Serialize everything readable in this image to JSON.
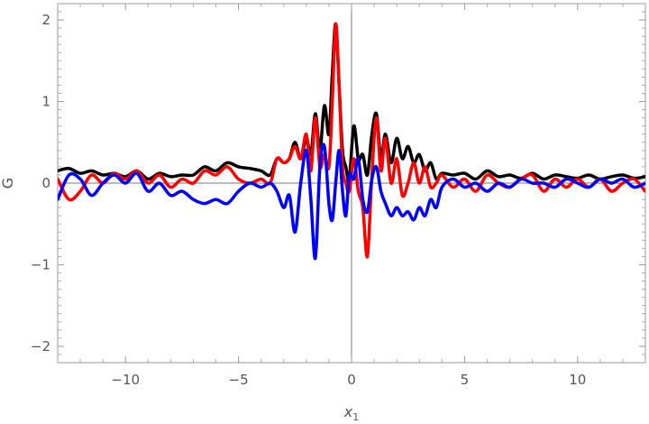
{
  "chart_data": {
    "type": "line",
    "title": "",
    "xlabel": "x",
    "xlabel_subscript": "1",
    "ylabel": "G",
    "xlim": [
      -13,
      13
    ],
    "ylim": [
      -2.2,
      2.2
    ],
    "x_ticks": [
      -10,
      -5,
      0,
      5,
      10
    ],
    "x_tick_labels": [
      "−10",
      "−5",
      "0",
      "5",
      "10"
    ],
    "y_ticks": [
      -2,
      -1,
      0,
      1,
      2
    ],
    "y_tick_labels": [
      "−2",
      "−1",
      "0",
      "1",
      "2"
    ],
    "grid": false,
    "legend": "none",
    "series": [
      {
        "color": "#000000",
        "x": [
          -13,
          -12.5,
          -12,
          -11.5,
          -11,
          -10.5,
          -10,
          -9.5,
          -9,
          -8.5,
          -8,
          -7.5,
          -7,
          -6.5,
          -6,
          -5.5,
          -5,
          -4.5,
          -4,
          -3.6,
          -3.3,
          -3,
          -2.75,
          -2.5,
          -2.25,
          -2.0,
          -1.8,
          -1.6,
          -1.4,
          -1.2,
          -1.0,
          -0.85,
          -0.7,
          -0.55,
          -0.4,
          -0.25,
          -0.1,
          0.1,
          0.3,
          0.5,
          0.7,
          0.9,
          1.1,
          1.3,
          1.5,
          1.75,
          2.0,
          2.25,
          2.5,
          2.75,
          3.0,
          3.25,
          3.5,
          3.75,
          4.0,
          4.5,
          5,
          5.5,
          6,
          6.5,
          7,
          7.5,
          8,
          8.5,
          9,
          9.5,
          10,
          10.5,
          11,
          11.5,
          12,
          12.5,
          13
        ],
        "y": [
          0.15,
          0.18,
          0.12,
          0.15,
          0.1,
          0.12,
          0.08,
          0.15,
          0.05,
          0.12,
          0.08,
          0.1,
          0.1,
          0.2,
          0.15,
          0.25,
          0.2,
          0.18,
          0.15,
          0.1,
          0.3,
          0.25,
          0.3,
          0.5,
          0.3,
          0.55,
          0.35,
          0.85,
          0.4,
          0.95,
          0.6,
          1.35,
          1.95,
          1.2,
          0.4,
          0.2,
          0.05,
          0.7,
          0.3,
          0.35,
          0.1,
          0.6,
          0.85,
          0.3,
          0.6,
          0.25,
          0.55,
          0.3,
          0.45,
          0.25,
          0.35,
          0.15,
          0.25,
          0.05,
          0.12,
          0.1,
          0.12,
          0.05,
          0.15,
          0.08,
          0.1,
          0.06,
          0.12,
          0.05,
          0.1,
          0.08,
          0.06,
          0.1,
          0.05,
          0.08,
          0.1,
          0.06,
          0.08
        ]
      },
      {
        "color": "#ff0000",
        "x": [
          -13,
          -12.5,
          -12,
          -11.5,
          -11,
          -10.5,
          -10,
          -9.5,
          -9,
          -8.5,
          -8,
          -7.5,
          -7,
          -6.5,
          -6,
          -5.5,
          -5,
          -4.5,
          -4,
          -3.6,
          -3.3,
          -3,
          -2.75,
          -2.5,
          -2.25,
          -2.0,
          -1.8,
          -1.6,
          -1.4,
          -1.2,
          -1.0,
          -0.85,
          -0.7,
          -0.55,
          -0.4,
          -0.25,
          -0.1,
          0.1,
          0.3,
          0.5,
          0.7,
          0.9,
          1.1,
          1.3,
          1.5,
          1.75,
          2.0,
          2.25,
          2.5,
          2.75,
          3.0,
          3.25,
          3.5,
          3.75,
          4.0,
          4.5,
          5,
          5.5,
          6,
          6.5,
          7,
          7.5,
          8,
          8.5,
          9,
          9.5,
          10,
          10.5,
          11,
          11.5,
          12,
          12.5,
          13
        ],
        "y": [
          0.05,
          -0.2,
          -0.1,
          0.1,
          0.0,
          0.12,
          0.05,
          0.15,
          0.0,
          0.1,
          -0.05,
          0.05,
          0.0,
          0.15,
          0.1,
          0.2,
          0.05,
          0.0,
          0.05,
          0.0,
          0.3,
          0.25,
          0.3,
          0.45,
          0.3,
          0.6,
          0.15,
          0.8,
          0.2,
          0.35,
          0.2,
          1.0,
          1.95,
          1.2,
          0.2,
          0.0,
          -0.1,
          0.3,
          -0.1,
          -0.3,
          -0.9,
          0.1,
          0.8,
          0.15,
          0.55,
          0.0,
          0.3,
          -0.15,
          0.0,
          0.25,
          0.0,
          0.2,
          -0.05,
          0.0,
          0.1,
          -0.05,
          0.05,
          -0.1,
          0.1,
          0.0,
          -0.05,
          0.05,
          0.1,
          -0.1,
          0.05,
          -0.05,
          0.05,
          -0.05,
          0.05,
          -0.1,
          0.0,
          0.05,
          -0.1
        ]
      },
      {
        "color": "#0000ff",
        "x": [
          -13,
          -12.5,
          -12,
          -11.5,
          -11,
          -10.5,
          -10,
          -9.5,
          -9,
          -8.5,
          -8,
          -7.5,
          -7,
          -6.5,
          -6,
          -5.5,
          -5,
          -4.5,
          -4,
          -3.6,
          -3.3,
          -3,
          -2.75,
          -2.5,
          -2.25,
          -2.0,
          -1.8,
          -1.6,
          -1.4,
          -1.2,
          -1.0,
          -0.85,
          -0.7,
          -0.55,
          -0.4,
          -0.25,
          -0.1,
          0.1,
          0.3,
          0.5,
          0.7,
          0.9,
          1.1,
          1.3,
          1.5,
          1.75,
          2.0,
          2.25,
          2.5,
          2.75,
          3.0,
          3.25,
          3.5,
          3.75,
          4.0,
          4.5,
          5,
          5.5,
          6,
          6.5,
          7,
          7.5,
          8,
          8.5,
          9,
          9.5,
          10,
          10.5,
          11,
          11.5,
          12,
          12.5,
          13
        ],
        "y": [
          -0.2,
          0.1,
          0.05,
          -0.15,
          0.0,
          0.1,
          0.0,
          0.12,
          -0.1,
          0.0,
          -0.15,
          -0.1,
          -0.2,
          -0.25,
          -0.2,
          -0.25,
          -0.1,
          0.0,
          -0.05,
          0.0,
          -0.1,
          -0.3,
          -0.15,
          -0.6,
          0.0,
          0.4,
          -0.2,
          -0.92,
          0.2,
          0.45,
          -0.25,
          -0.45,
          0.0,
          0.4,
          -0.1,
          -0.4,
          0.1,
          0.05,
          0.3,
          -0.2,
          -0.35,
          0.05,
          0.2,
          -0.1,
          -0.25,
          -0.4,
          -0.3,
          -0.4,
          -0.35,
          -0.45,
          -0.3,
          -0.4,
          -0.2,
          -0.3,
          -0.05,
          0.05,
          -0.05,
          0.0,
          -0.1,
          0.0,
          -0.05,
          0.05,
          0.0,
          0.0,
          -0.05,
          0.05,
          0.0,
          -0.05,
          0.05,
          0.0,
          0.05,
          -0.05,
          0.0
        ]
      }
    ]
  }
}
